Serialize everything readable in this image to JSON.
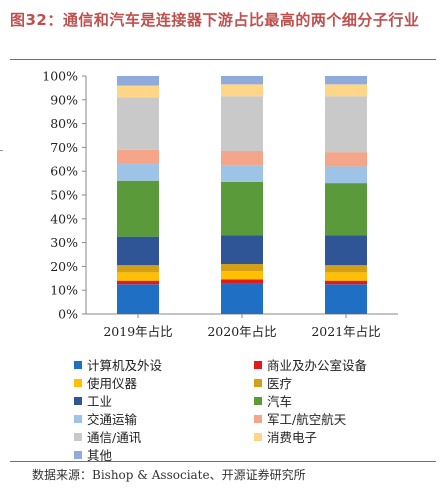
{
  "title": "图32：通信和汽车是连接器下游占比最高的两个细分子行业",
  "source": "数据来源：Bishop & Associate、开源证券研究所",
  "chart_data": {
    "type": "bar",
    "stacked": true,
    "title": "",
    "xlabel": "",
    "ylabel": "",
    "ylim": [
      0,
      100
    ],
    "yticks": [
      "0%",
      "10%",
      "20%",
      "30%",
      "40%",
      "50%",
      "60%",
      "70%",
      "80%",
      "90%",
      "100%"
    ],
    "grid": false,
    "legend_position": "bottom",
    "categories": [
      "2019年占比",
      "2020年占比",
      "2021年占比"
    ],
    "series": [
      {
        "name": "计算机及外设",
        "color": "#1f6fc5",
        "values": [
          12.5,
          13.0,
          12.5
        ]
      },
      {
        "name": "商业及办公室设备",
        "color": "#e31a1c",
        "values": [
          1.5,
          1.5,
          1.5
        ]
      },
      {
        "name": "使用仪器",
        "color": "#ffc000",
        "values": [
          3.5,
          3.5,
          3.5
        ]
      },
      {
        "name": "医疗",
        "color": "#d4a017",
        "values": [
          3.0,
          3.0,
          3.0
        ]
      },
      {
        "name": "工业",
        "color": "#2f5597",
        "values": [
          12.0,
          12.0,
          12.5
        ]
      },
      {
        "name": "汽车",
        "color": "#5a9a3a",
        "values": [
          23.5,
          22.5,
          22.0
        ]
      },
      {
        "name": "交通运输",
        "color": "#9dc3e6",
        "values": [
          7.0,
          7.0,
          7.0
        ]
      },
      {
        "name": "军工/航空航天",
        "color": "#f4a58a",
        "values": [
          6.0,
          6.0,
          6.0
        ]
      },
      {
        "name": "通信/通讯",
        "color": "#c9c9c9",
        "values": [
          22.0,
          23.0,
          23.5
        ]
      },
      {
        "name": "消费电子",
        "color": "#ffd588",
        "values": [
          5.0,
          5.0,
          5.0
        ]
      },
      {
        "name": "其他",
        "color": "#8faadc",
        "values": [
          4.0,
          3.5,
          3.5
        ]
      }
    ]
  }
}
